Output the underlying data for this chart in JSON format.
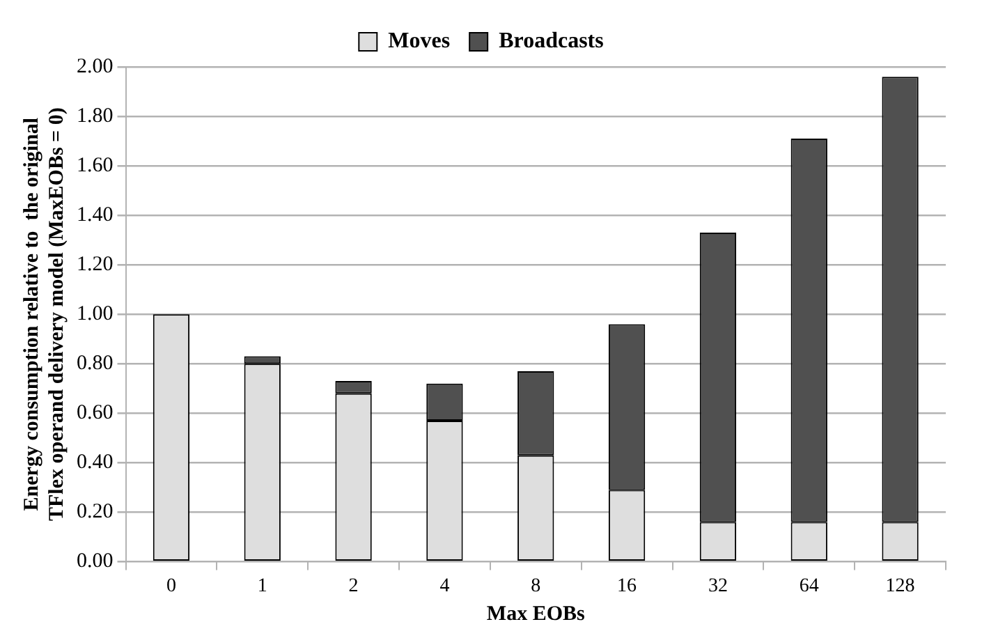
{
  "chart_data": {
    "type": "bar",
    "xlabel": "Max EOBs",
    "ylabel": "Energy consumption relative to  the original TFlex operand delivery model (MaxEOBs = 0)",
    "categories": [
      "0",
      "1",
      "2",
      "4",
      "8",
      "16",
      "32",
      "64",
      "128"
    ],
    "series": [
      {
        "name": "Moves",
        "color": "#dedede",
        "values": [
          1.0,
          0.8,
          0.68,
          0.57,
          0.43,
          0.29,
          0.16,
          0.16,
          0.16
        ]
      },
      {
        "name": "Broadcasts",
        "color": "#505050",
        "values": [
          0,
          0.03,
          0.05,
          0.15,
          0.34,
          0.67,
          1.17,
          1.55,
          1.8
        ]
      }
    ],
    "stacked": true,
    "ylim": [
      0,
      2
    ],
    "yticks": [
      {
        "value": 0,
        "label": "0.00"
      },
      {
        "value": 0.2,
        "label": "0.20"
      },
      {
        "value": 0.4,
        "label": "0.40"
      },
      {
        "value": 0.6,
        "label": "0.60"
      },
      {
        "value": 0.8,
        "label": "0.80"
      },
      {
        "value": 1,
        "label": "1.00"
      },
      {
        "value": 1.2,
        "label": "1.20"
      },
      {
        "value": 1.4,
        "label": "1.40"
      },
      {
        "value": 1.6,
        "label": "1.60"
      },
      {
        "value": 1.8,
        "label": "1.80"
      },
      {
        "value": 2,
        "label": "2.00"
      }
    ],
    "grid": "y",
    "legend": "top"
  }
}
